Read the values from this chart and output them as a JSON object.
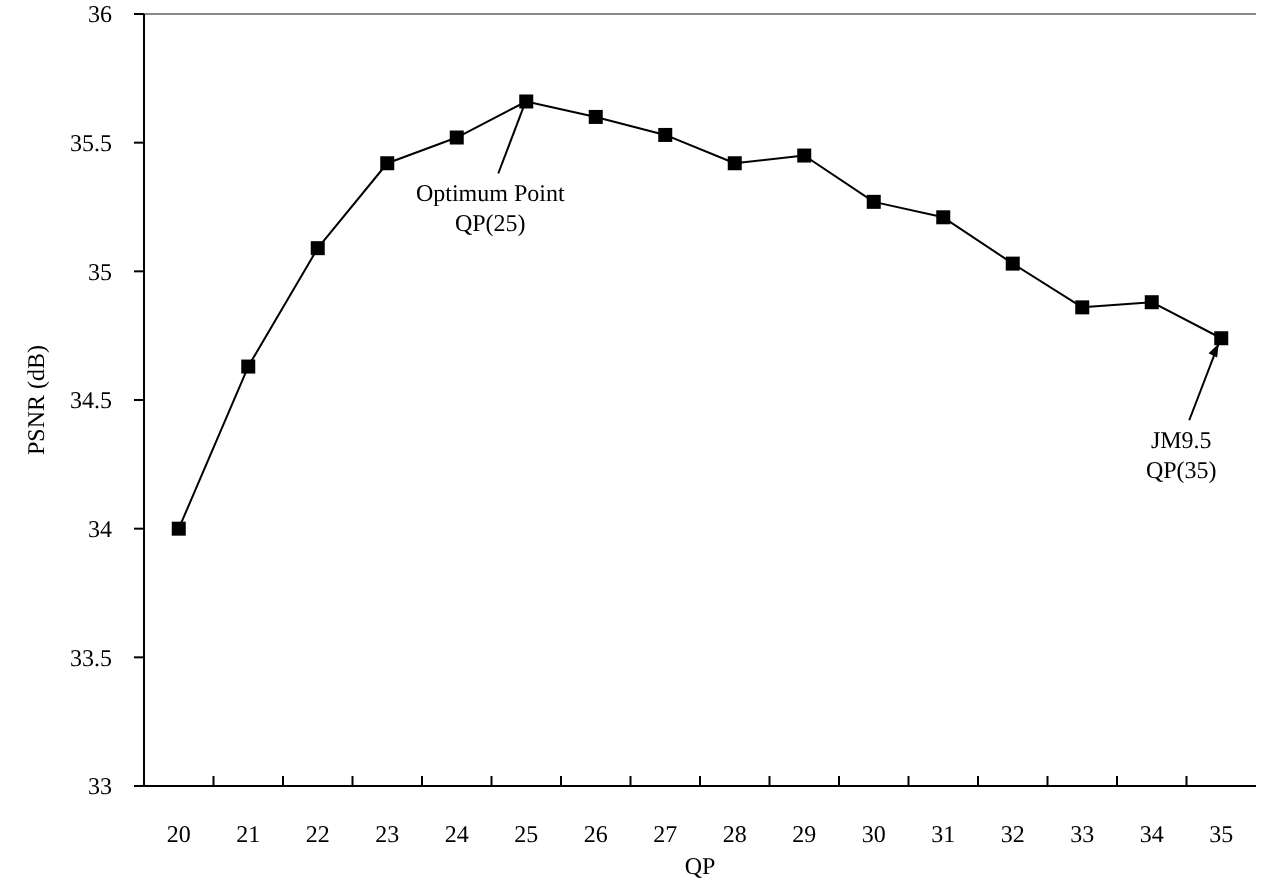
{
  "chart_data": {
    "type": "line",
    "xlabel": "QP",
    "ylabel": "PSNR (dB)",
    "categories": [
      "20",
      "21",
      "22",
      "23",
      "24",
      "25",
      "26",
      "27",
      "28",
      "29",
      "30",
      "31",
      "32",
      "33",
      "34",
      "35"
    ],
    "series": [
      {
        "color": "#000000",
        "values": [
          34.0,
          34.63,
          35.09,
          35.42,
          35.52,
          35.66,
          35.6,
          35.53,
          35.42,
          35.45,
          35.27,
          35.21,
          35.03,
          34.86,
          34.88,
          34.74
        ]
      }
    ],
    "ylim": [
      33,
      36
    ],
    "yticks": [
      33,
      33.5,
      34,
      34.5,
      35,
      35.5,
      36
    ],
    "marker": "square",
    "line_style": "solid",
    "annotations": [
      {
        "text": "Optimum Point\nQP(25)",
        "x": "25",
        "y": 35.66
      },
      {
        "text": "JM9.5\nQP(35)",
        "x": "35",
        "y": 34.74
      }
    ]
  }
}
